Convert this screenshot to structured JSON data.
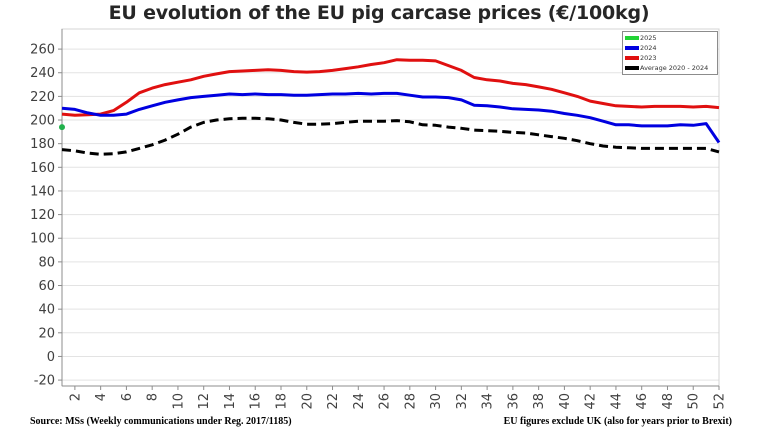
{
  "title": "EU evolution of the EU pig carcase prices (€/100kg)",
  "footer": {
    "source": "Source: MSs (Weekly communications under Reg. 2017/1185)",
    "note": "EU figures exclude UK (also for years prior to Brexit)"
  },
  "chart_data": {
    "type": "line",
    "title": "EU evolution of the EU pig carcase prices (€/100kg)",
    "xlabel": "",
    "ylabel": "",
    "x": [
      1,
      2,
      3,
      4,
      5,
      6,
      7,
      8,
      9,
      10,
      11,
      12,
      13,
      14,
      15,
      16,
      17,
      18,
      19,
      20,
      21,
      22,
      23,
      24,
      25,
      26,
      27,
      28,
      29,
      30,
      31,
      32,
      33,
      34,
      35,
      36,
      37,
      38,
      39,
      40,
      41,
      42,
      43,
      44,
      45,
      46,
      47,
      48,
      49,
      50,
      51,
      52
    ],
    "xticks": [
      2,
      4,
      6,
      8,
      10,
      12,
      14,
      16,
      18,
      20,
      22,
      24,
      26,
      28,
      30,
      32,
      34,
      36,
      38,
      40,
      42,
      44,
      46,
      48,
      50,
      52
    ],
    "yticks": [
      -20,
      0,
      20,
      40,
      60,
      80,
      100,
      120,
      140,
      160,
      180,
      200,
      220,
      240,
      260
    ],
    "xlim": [
      1,
      52
    ],
    "ylim": [
      -25,
      277
    ],
    "grid": true,
    "legend_position": "top-right",
    "series": [
      {
        "name": "2025",
        "color": "#22b14c",
        "style": "marker",
        "values": [
          194
        ]
      },
      {
        "name": "2024",
        "color": "#0000e0",
        "style": "solid",
        "values": [
          210,
          209,
          206,
          204,
          204,
          205,
          209,
          212,
          215,
          217,
          219,
          220,
          221,
          222,
          221.5,
          222,
          221.5,
          221.5,
          221,
          221,
          221.5,
          222,
          222,
          222.5,
          222,
          222.5,
          222.5,
          221,
          219.5,
          219.5,
          219,
          217,
          212.5,
          212,
          211,
          209.5,
          209,
          208.5,
          207.5,
          205.5,
          204,
          202,
          199,
          196,
          196,
          195,
          195,
          195,
          196,
          195.5,
          197,
          181
        ]
      },
      {
        "name": "2023",
        "color": "#e01010",
        "style": "solid",
        "values": [
          205,
          204,
          204.5,
          205,
          208,
          215,
          223,
          227,
          230,
          232,
          234,
          237,
          239,
          241,
          241.5,
          242,
          242.5,
          242,
          241,
          240.5,
          241,
          242,
          243.5,
          245,
          247,
          248.5,
          251,
          250.5,
          250.5,
          250,
          246,
          242,
          236,
          234,
          233,
          231,
          230,
          228,
          226,
          223,
          220,
          216,
          214,
          212,
          211.5,
          211,
          211.5,
          211.5,
          211.5,
          211,
          211.5,
          210.5
        ]
      },
      {
        "name": "Average 2020 - 2024",
        "color": "#000000",
        "style": "dashed",
        "values": [
          175,
          174,
          172,
          171,
          171.5,
          173,
          176,
          179,
          183,
          188,
          194,
          198,
          200,
          201,
          201.5,
          201.5,
          201,
          200,
          198,
          196.5,
          196.5,
          197,
          198,
          199,
          199,
          199,
          199.5,
          198.5,
          196,
          195.5,
          194,
          193,
          191.5,
          191,
          190.5,
          189.5,
          189,
          187.5,
          186,
          184.5,
          182.5,
          180,
          178,
          177,
          176.5,
          176,
          176,
          176,
          176,
          176,
          176,
          173
        ]
      }
    ]
  },
  "legend": {
    "items": [
      {
        "label": "2025",
        "color": "#22d335"
      },
      {
        "label": "2024",
        "color": "#0000e0"
      },
      {
        "label": "2023",
        "color": "#e01010"
      },
      {
        "label": "Average 2020 - 2024",
        "color": "#000000"
      }
    ]
  }
}
